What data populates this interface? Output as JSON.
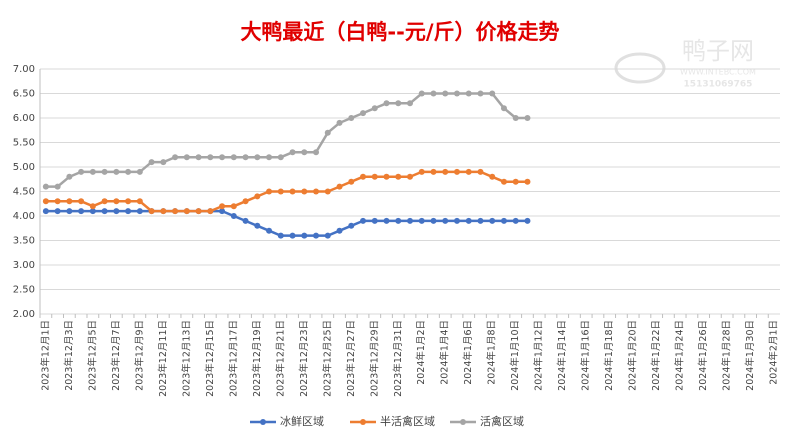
{
  "chart_data": {
    "type": "line",
    "title": "大鸭最近（白鸭--元/斤）价格走势",
    "watermark": {
      "name": "鸭子网",
      "url": "WWW.INTEBC.COM",
      "phone": "15131069765"
    },
    "categories": [
      "2023年12月1日",
      null,
      "2023年12月3日",
      null,
      "2023年12月5日",
      null,
      "2023年12月7日",
      null,
      "2023年12月9日",
      null,
      "2023年12月11日",
      null,
      "2023年12月13日",
      null,
      "2023年12月15日",
      null,
      "2023年12月17日",
      null,
      "2023年12月19日",
      null,
      "2023年12月21日",
      null,
      "2023年12月23日",
      null,
      "2023年12月25日",
      null,
      "2023年12月27日",
      null,
      "2023年12月29日",
      null,
      "2023年12月31日",
      null,
      "2024年1月2日",
      null,
      "2024年1月4日",
      null,
      "2024年1月6日",
      null,
      "2024年1月8日",
      null,
      "2024年1月10日",
      null,
      "2024年1月12日",
      null,
      "2024年1月14日",
      null,
      "2024年1月16日",
      null,
      "2024年1月18日",
      null,
      "2024年1月20日",
      null,
      "2024年1月22日",
      null,
      "2024年1月24日",
      null,
      "2024年1月26日",
      null,
      "2024年1月28日",
      null,
      "2024年1月30日",
      null,
      "2024年2月1日"
    ],
    "series": [
      {
        "name": "冰鲜区域",
        "color": "#4472c4",
        "values": [
          4.1,
          4.1,
          4.1,
          4.1,
          4.1,
          4.1,
          4.1,
          4.1,
          4.1,
          4.1,
          4.1,
          4.1,
          4.1,
          4.1,
          4.1,
          4.1,
          4.0,
          3.9,
          3.8,
          3.7,
          3.6,
          3.6,
          3.6,
          3.6,
          3.6,
          3.7,
          3.8,
          3.9,
          3.9,
          3.9,
          3.9,
          3.9,
          3.9,
          3.9,
          3.9,
          3.9,
          3.9,
          3.9,
          3.9,
          3.9,
          3.9,
          3.9,
          null,
          null,
          null,
          null,
          null,
          null,
          null,
          null,
          null,
          null,
          null,
          null,
          null,
          null,
          null,
          null,
          null,
          null,
          null,
          null,
          null
        ]
      },
      {
        "name": "半活禽区域",
        "color": "#ed7d31",
        "values": [
          4.3,
          4.3,
          4.3,
          4.3,
          4.2,
          4.3,
          4.3,
          4.3,
          4.3,
          4.1,
          4.1,
          4.1,
          4.1,
          4.1,
          4.1,
          4.2,
          4.2,
          4.3,
          4.4,
          4.5,
          4.5,
          4.5,
          4.5,
          4.5,
          4.5,
          4.6,
          4.7,
          4.8,
          4.8,
          4.8,
          4.8,
          4.8,
          4.9,
          4.9,
          4.9,
          4.9,
          4.9,
          4.9,
          4.8,
          4.7,
          4.7,
          4.7,
          null,
          null,
          null,
          null,
          null,
          null,
          null,
          null,
          null,
          null,
          null,
          null,
          null,
          null,
          null,
          null,
          null,
          null,
          null,
          null,
          null
        ]
      },
      {
        "name": "活禽区域",
        "color": "#a5a5a5",
        "values": [
          4.6,
          4.6,
          4.8,
          4.9,
          4.9,
          4.9,
          4.9,
          4.9,
          4.9,
          5.1,
          5.1,
          5.2,
          5.2,
          5.2,
          5.2,
          5.2,
          5.2,
          5.2,
          5.2,
          5.2,
          5.2,
          5.3,
          5.3,
          5.3,
          5.7,
          5.9,
          6.0,
          6.1,
          6.2,
          6.3,
          6.3,
          6.3,
          6.5,
          6.5,
          6.5,
          6.5,
          6.5,
          6.5,
          6.5,
          6.2,
          6.0,
          6.0,
          null,
          null,
          null,
          null,
          null,
          null,
          null,
          null,
          null,
          null,
          null,
          null,
          null,
          null,
          null,
          null,
          null,
          null,
          null,
          null,
          null
        ]
      }
    ],
    "ylim": [
      2,
      7
    ],
    "yticks": [
      {
        "value": 2,
        "label": "2.00"
      },
      {
        "value": 2.5,
        "label": "2.50"
      },
      {
        "value": 3,
        "label": "3.00"
      },
      {
        "value": 3.5,
        "label": "3.50"
      },
      {
        "value": 4,
        "label": "4.00"
      },
      {
        "value": 4.5,
        "label": "4.50"
      },
      {
        "value": 5,
        "label": "5.00"
      },
      {
        "value": 5.5,
        "label": "5.50"
      },
      {
        "value": 6,
        "label": "6.00"
      },
      {
        "value": 6.5,
        "label": "6.50"
      },
      {
        "value": 7,
        "label": "7.00"
      }
    ],
    "grid": true,
    "legend": "bottom"
  }
}
